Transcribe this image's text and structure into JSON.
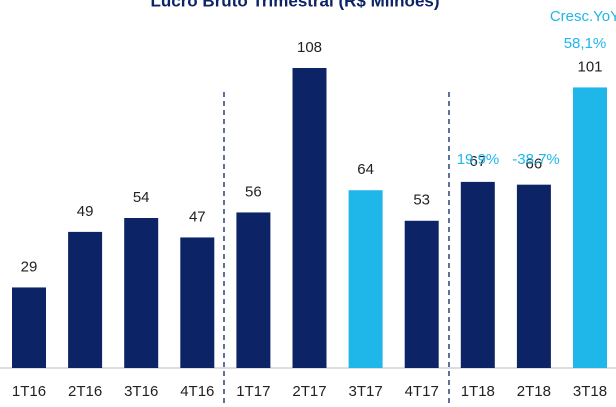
{
  "chart_data": {
    "type": "bar",
    "title": "Lucro Bruto Trimestral (R$ Milhões)",
    "categories": [
      "1T16",
      "2T16",
      "3T16",
      "4T16",
      "1T17",
      "2T17",
      "3T17",
      "4T17",
      "1T18",
      "2T18",
      "3T18"
    ],
    "values": [
      29,
      49,
      54,
      47,
      56,
      108,
      64,
      53,
      67,
      66,
      101
    ],
    "colors": [
      "#0c2466",
      "#0c2466",
      "#0c2466",
      "#0c2466",
      "#0c2466",
      "#0c2466",
      "#1fb6ea",
      "#0c2466",
      "#0c2466",
      "#0c2466",
      "#1fb6ea"
    ],
    "annotations": [
      "Cresc.YoY",
      "19,9%",
      "-38,7%",
      "58,1%"
    ]
  }
}
